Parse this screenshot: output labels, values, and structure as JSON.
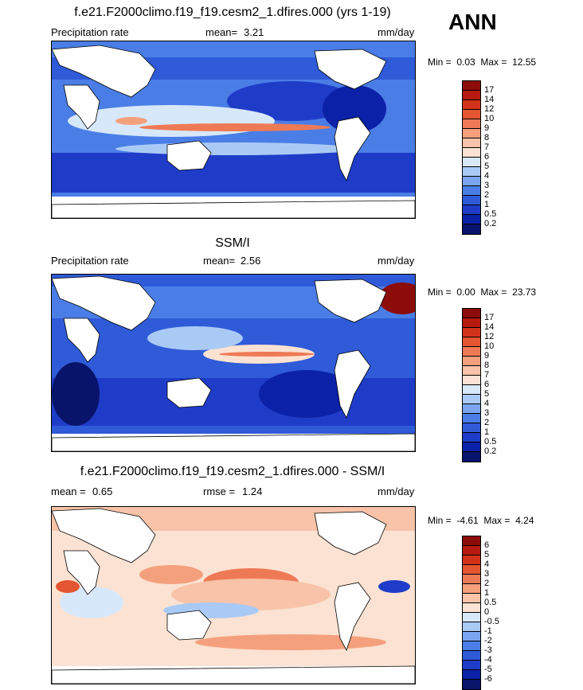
{
  "season": "ANN",
  "units_label": "mm/day",
  "colors": {
    "precip_scale": [
      "#08136a",
      "#0b21a8",
      "#1f3cc8",
      "#2f5bd8",
      "#4a7ee6",
      "#7ba5ef",
      "#aacaf6",
      "#d7e8fb",
      "#fbe2d2",
      "#f8c3a8",
      "#f4a07c",
      "#ee7a55",
      "#e45532",
      "#d3321a",
      "#b61a10",
      "#8c0c0a"
    ],
    "diff_scale": [
      "#08136a",
      "#0b21a8",
      "#1f3cc8",
      "#2f5bd8",
      "#4a7ee6",
      "#7ba5ef",
      "#aacaf6",
      "#d7e8fb",
      "#fbe2d2",
      "#f8c3a8",
      "#f4a07c",
      "#ee7a55",
      "#e45532",
      "#d3321a",
      "#b61a10",
      "#8c0c0a"
    ]
  },
  "panels": [
    {
      "title": "f.e21.F2000climo.f19_f19.cesm2_1.dfires.000 (yrs 1-19)",
      "left_label": "Precipitation rate",
      "stat_label": "mean=",
      "stat_value": "3.21",
      "units": "mm/day",
      "min_label": "Min =",
      "min_value": "0.03",
      "max_label": "Max =",
      "max_value": "12.55",
      "levels": [
        "17",
        "14",
        "12",
        "10",
        "9",
        "8",
        "7",
        "6",
        "5",
        "4",
        "3",
        "2",
        "1",
        "0.5",
        "0.2"
      ]
    },
    {
      "title": "SSM/I",
      "left_label": "Precipitation rate",
      "stat_label": "mean=",
      "stat_value": "2.56",
      "units": "mm/day",
      "min_label": "Min =",
      "min_value": "0.00",
      "max_label": "Max =",
      "max_value": "23.73",
      "levels": [
        "17",
        "14",
        "12",
        "10",
        "9",
        "8",
        "7",
        "6",
        "5",
        "4",
        "3",
        "2",
        "1",
        "0.5",
        "0.2"
      ]
    },
    {
      "title": "f.e21.F2000climo.f19_f19.cesm2_1.dfires.000 - SSM/I",
      "left_label": "mean =",
      "left_value": "0.65",
      "stat_label": "rmse =",
      "stat_value": "1.24",
      "units": "mm/day",
      "min_label": "Min =",
      "min_value": "-4.61",
      "max_label": "Max =",
      "max_value": "4.24",
      "levels": [
        "6",
        "5",
        "4",
        "3",
        "2",
        "1",
        "0.5",
        "0",
        "-0.5",
        "-1",
        "-2",
        "-3",
        "-4",
        "-5",
        "-6"
      ]
    }
  ],
  "chart_data": [
    {
      "type": "heatmap",
      "title": "f.e21.F2000climo.f19_f19.cesm2_1.dfires.000 (yrs 1-19)",
      "variable": "Precipitation rate",
      "units": "mm/day",
      "mean": 3.21,
      "min": 0.03,
      "max": 12.55,
      "contour_levels": [
        0.2,
        0.5,
        1,
        2,
        3,
        4,
        5,
        6,
        7,
        8,
        9,
        10,
        12,
        14,
        17
      ]
    },
    {
      "type": "heatmap",
      "title": "SSM/I",
      "variable": "Precipitation rate",
      "units": "mm/day",
      "mean": 2.56,
      "min": 0.0,
      "max": 23.73,
      "contour_levels": [
        0.2,
        0.5,
        1,
        2,
        3,
        4,
        5,
        6,
        7,
        8,
        9,
        10,
        12,
        14,
        17
      ]
    },
    {
      "type": "heatmap",
      "title": "f.e21.F2000climo.f19_f19.cesm2_1.dfires.000 - SSM/I",
      "units": "mm/day",
      "mean": 0.65,
      "rmse": 1.24,
      "min": -4.61,
      "max": 4.24,
      "contour_levels": [
        -6,
        -5,
        -4,
        -3,
        -2,
        -1,
        -0.5,
        0,
        0.5,
        1,
        2,
        3,
        4,
        5,
        6
      ]
    }
  ]
}
